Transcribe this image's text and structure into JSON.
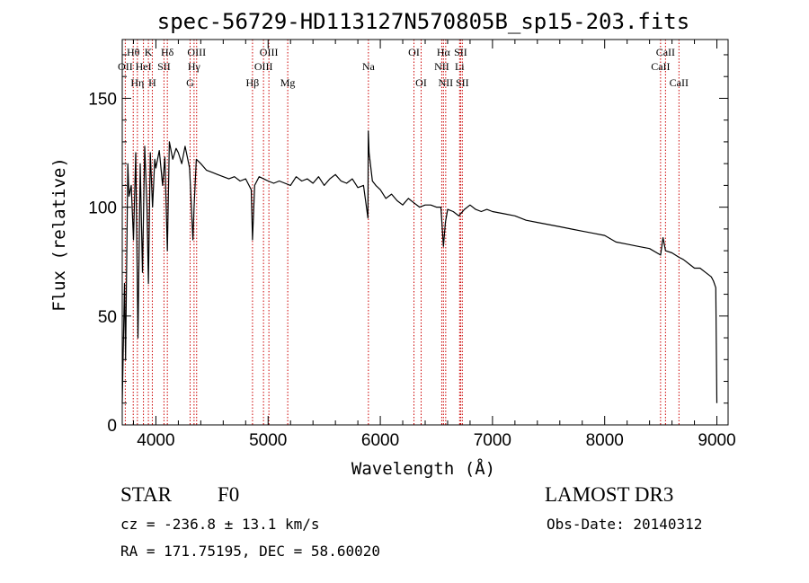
{
  "chart_data": {
    "type": "line",
    "title": "spec-56729-HD113127N570805B_sp15-203.fits",
    "xlabel": "Wavelength (Å)",
    "ylabel": "Flux (relative)",
    "xlim": [
      3700,
      9100
    ],
    "ylim": [
      0,
      177
    ],
    "xticks": [
      4000,
      5000,
      6000,
      7000,
      8000,
      9000
    ],
    "yticks": [
      0,
      50,
      100,
      150
    ],
    "series": [
      {
        "name": "spectrum",
        "x": [
          3700,
          3720,
          3730,
          3750,
          3760,
          3780,
          3800,
          3820,
          3840,
          3860,
          3880,
          3900,
          3920,
          3933,
          3950,
          3970,
          3990,
          4000,
          4030,
          4060,
          4080,
          4102,
          4120,
          4150,
          4180,
          4200,
          4230,
          4260,
          4300,
          4330,
          4340,
          4360,
          4400,
          4450,
          4500,
          4550,
          4600,
          4650,
          4700,
          4750,
          4800,
          4850,
          4861,
          4880,
          4920,
          4960,
          5000,
          5050,
          5100,
          5150,
          5200,
          5250,
          5300,
          5350,
          5400,
          5450,
          5500,
          5550,
          5600,
          5650,
          5700,
          5750,
          5800,
          5850,
          5890,
          5893,
          5900,
          5930,
          5960,
          6000,
          6050,
          6100,
          6150,
          6200,
          6250,
          6300,
          6350,
          6400,
          6450,
          6500,
          6540,
          6563,
          6580,
          6600,
          6650,
          6700,
          6750,
          6800,
          6850,
          6900,
          6950,
          7000,
          7100,
          7200,
          7300,
          7400,
          7500,
          7600,
          7700,
          7800,
          7900,
          8000,
          8100,
          8200,
          8300,
          8400,
          8498,
          8520,
          8542,
          8600,
          8662,
          8700,
          8750,
          8800,
          8850,
          8900,
          8950,
          8970,
          8990,
          9000
        ],
        "values": [
          10,
          65,
          30,
          120,
          105,
          110,
          85,
          125,
          40,
          120,
          70,
          128,
          100,
          65,
          125,
          100,
          122,
          118,
          126,
          110,
          123,
          80,
          130,
          122,
          127,
          125,
          120,
          128,
          118,
          85,
          100,
          122,
          120,
          117,
          116,
          115,
          114,
          113,
          114,
          112,
          113,
          108,
          85,
          110,
          114,
          113,
          112,
          111,
          112,
          111,
          110,
          114,
          112,
          113,
          111,
          114,
          110,
          113,
          115,
          112,
          111,
          113,
          109,
          110,
          95,
          135,
          125,
          112,
          110,
          108,
          104,
          106,
          103,
          101,
          104,
          102,
          100,
          101,
          101,
          100,
          100,
          82,
          93,
          99,
          98,
          96,
          99,
          101,
          99,
          98,
          99,
          98,
          97,
          96,
          94,
          93,
          92,
          91,
          90,
          89,
          88,
          87,
          84,
          83,
          82,
          81,
          78,
          86,
          80,
          79,
          77,
          76,
          74,
          72,
          72,
          70,
          68,
          66,
          63,
          10
        ]
      }
    ],
    "spectral_lines": [
      {
        "label": "OII",
        "wavelength": 3727,
        "row": 2
      },
      {
        "label": "Hθ",
        "wavelength": 3798,
        "row": 1
      },
      {
        "label": "Hη",
        "wavelength": 3835,
        "row": 3
      },
      {
        "label": "HeI",
        "wavelength": 3889,
        "row": 2
      },
      {
        "label": "K",
        "wavelength": 3933,
        "row": 1
      },
      {
        "label": "H",
        "wavelength": 3968,
        "row": 3
      },
      {
        "label": "SII",
        "wavelength": 4072,
        "row": 2
      },
      {
        "label": "Hδ",
        "wavelength": 4102,
        "row": 1
      },
      {
        "label": "G",
        "wavelength": 4305,
        "row": 3
      },
      {
        "label": "Hγ",
        "wavelength": 4340,
        "row": 2
      },
      {
        "label": "OIII",
        "wavelength": 4363,
        "row": 1
      },
      {
        "label": "Hβ",
        "wavelength": 4861,
        "row": 3
      },
      {
        "label": "OIII",
        "wavelength": 4959,
        "row": 2
      },
      {
        "label": "OIII",
        "wavelength": 5007,
        "row": 1
      },
      {
        "label": "Mg",
        "wavelength": 5175,
        "row": 3
      },
      {
        "label": "Na",
        "wavelength": 5894,
        "row": 2
      },
      {
        "label": "OI",
        "wavelength": 6300,
        "row": 1
      },
      {
        "label": "OI",
        "wavelength": 6364,
        "row": 3
      },
      {
        "label": "NII",
        "wavelength": 6548,
        "row": 2
      },
      {
        "label": "Hα",
        "wavelength": 6563,
        "row": 1
      },
      {
        "label": "NII",
        "wavelength": 6583,
        "row": 3
      },
      {
        "label": "Li",
        "wavelength": 6707,
        "row": 2
      },
      {
        "label": "SII",
        "wavelength": 6716,
        "row": 1
      },
      {
        "label": "SII",
        "wavelength": 6731,
        "row": 3
      },
      {
        "label": "CaII",
        "wavelength": 8498,
        "row": 2
      },
      {
        "label": "CaII",
        "wavelength": 8542,
        "row": 1
      },
      {
        "label": "CaII",
        "wavelength": 8662,
        "row": 3
      }
    ],
    "line_color": "#000000",
    "marker_color": "#cc0000"
  },
  "info": {
    "object_class": "STAR",
    "subclass": "F0",
    "survey": "LAMOST DR3",
    "cz": "cz = -236.8 ± 13.1 km/s",
    "obs_date": "Obs-Date: 20140312",
    "radec": "RA = 171.75195, DEC =  58.60020"
  }
}
